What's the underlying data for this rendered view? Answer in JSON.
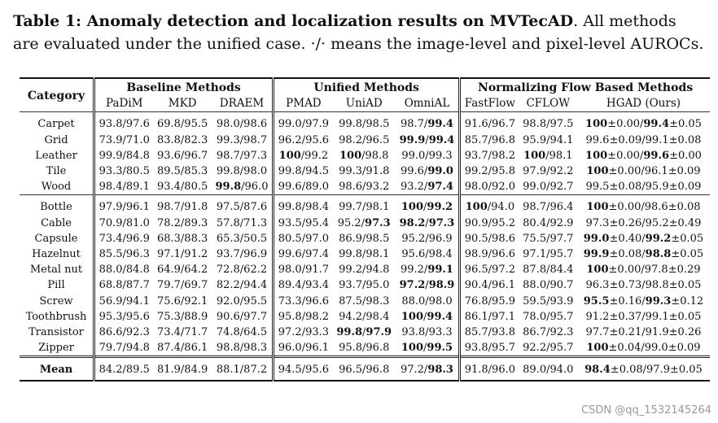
{
  "caption": {
    "label": "Table 1: Anomaly detection and localization results on MVTecAD",
    "rest": ". All methods are evaluated under the unified case. ·/· means the image-level and pixel-level AUROCs."
  },
  "header": {
    "category": "Category",
    "groups": [
      "Baseline Methods",
      "Unified Methods",
      "Normalizing Flow Based Methods"
    ],
    "methods": [
      "PaDiM",
      "MKD",
      "DRAEM",
      "PMAD",
      "UniAD",
      "OmniAL",
      "FastFlow",
      "CFLOW",
      "HGAD (Ours)"
    ]
  },
  "textures": [
    {
      "cat": "Carpet",
      "v": [
        "93.8/97.6",
        "69.8/95.5",
        "98.0/98.6",
        "99.0/97.9",
        "99.8/98.5",
        "98.7/**99.4**",
        "91.6/96.7",
        "98.8/97.5",
        "**100**±0.00/**99.4**±0.05"
      ]
    },
    {
      "cat": "Grid",
      "v": [
        "73.9/71.0",
        "83.8/82.3",
        "99.3/98.7",
        "96.2/95.6",
        "98.2/96.5",
        "**99.9**/**99.4**",
        "85.7/96.8",
        "95.9/94.1",
        "99.6±0.09/99.1±0.08"
      ]
    },
    {
      "cat": "Leather",
      "v": [
        "99.9/84.8",
        "93.6/96.7",
        "98.7/97.3",
        "**100**/99.2",
        "**100**/98.8",
        "99.0/99.3",
        "93.7/98.2",
        "**100**/98.1",
        "**100**±0.00/**99.6**±0.00"
      ]
    },
    {
      "cat": "Tile",
      "v": [
        "93.3/80.5",
        "89.5/85.3",
        "99.8/98.0",
        "99.8/94.5",
        "99.3/91.8",
        "99.6/**99.0**",
        "99.2/95.8",
        "97.9/92.2",
        "**100**±0.00/96.1±0.09"
      ]
    },
    {
      "cat": "Wood",
      "v": [
        "98.4/89.1",
        "93.4/80.5",
        "**99.8**/96.0",
        "99.6/89.0",
        "98.6/93.2",
        "93.2/**97.4**",
        "98.0/92.0",
        "99.0/92.7",
        "99.5±0.08/95.9±0.09"
      ]
    }
  ],
  "objects": [
    {
      "cat": "Bottle",
      "v": [
        "97.9/96.1",
        "98.7/91.8",
        "97.5/87.6",
        "99.8/98.4",
        "99.7/98.1",
        "**100**/**99.2**",
        "**100**/94.0",
        "98.7/96.4",
        "**100**±0.00/98.6±0.08"
      ]
    },
    {
      "cat": "Cable",
      "v": [
        "70.9/81.0",
        "78.2/89.3",
        "57.8/71.3",
        "93.5/95.4",
        "95.2/**97.3**",
        "**98.2**/**97.3**",
        "90.9/95.2",
        "80.4/92.9",
        "97.3±0.26/95.2±0.49"
      ]
    },
    {
      "cat": "Capsule",
      "v": [
        "73.4/96.9",
        "68.3/88.3",
        "65.3/50.5",
        "80.5/97.0",
        "86.9/98.5",
        "95.2/96.9",
        "90.5/98.6",
        "75.5/97.7",
        "**99.0**±0.40/**99.2**±0.05"
      ]
    },
    {
      "cat": "Hazelnut",
      "v": [
        "85.5/96.3",
        "97.1/91.2",
        "93.7/96.9",
        "99.6/97.4",
        "99.8/98.1",
        "95.6/98.4",
        "98.9/96.6",
        "97.1/95.7",
        "**99.9**±0.08/**98.8**±0.05"
      ]
    },
    {
      "cat": "Metal nut",
      "v": [
        "88.0/84.8",
        "64.9/64.2",
        "72.8/62.2",
        "98.0/91.7",
        "99.2/94.8",
        "99.2/**99.1**",
        "96.5/97.2",
        "87.8/84.4",
        "**100**±0.00/97.8±0.29"
      ]
    },
    {
      "cat": "Pill",
      "v": [
        "68.8/87.7",
        "79.7/69.7",
        "82.2/94.4",
        "89.4/93.4",
        "93.7/95.0",
        "**97.2**/**98.9**",
        "90.4/96.1",
        "88.0/90.7",
        "96.3±0.73/98.8±0.05"
      ]
    },
    {
      "cat": "Screw",
      "v": [
        "56.9/94.1",
        "75.6/92.1",
        "92.0/95.5",
        "73.3/96.6",
        "87.5/98.3",
        "88.0/98.0",
        "76.8/95.9",
        "59.5/93.9",
        "**95.5**±0.16/**99.3**±0.12"
      ]
    },
    {
      "cat": "Toothbrush",
      "v": [
        "95.3/95.6",
        "75.3/88.9",
        "90.6/97.7",
        "95.8/98.2",
        "94.2/98.4",
        "**100**/**99.4**",
        "86.1/97.1",
        "78.0/95.7",
        "91.2±0.37/99.1±0.05"
      ]
    },
    {
      "cat": "Transistor",
      "v": [
        "86.6/92.3",
        "73.4/71.7",
        "74.8/64.5",
        "97.2/93.3",
        "**99.8**/**97.9**",
        "93.8/93.3",
        "85.7/93.8",
        "86.7/92.3",
        "97.7±0.21/91.9±0.26"
      ]
    },
    {
      "cat": "Zipper",
      "v": [
        "79.7/94.8",
        "87.4/86.1",
        "98.8/98.3",
        "96.0/96.1",
        "95.8/96.8",
        "**100**/**99.5**",
        "93.8/95.7",
        "92.2/95.7",
        "**100**±0.04/99.0±0.09"
      ]
    }
  ],
  "mean": {
    "cat": "Mean",
    "v": [
      "84.2/89.5",
      "81.9/84.9",
      "88.1/87.2",
      "94.5/95.6",
      "96.5/96.8",
      "97.2/**98.3**",
      "91.8/96.0",
      "89.0/94.0",
      "**98.4**±0.08/97.9±0.05"
    ]
  },
  "watermark": "CSDN @qq_1532145264"
}
